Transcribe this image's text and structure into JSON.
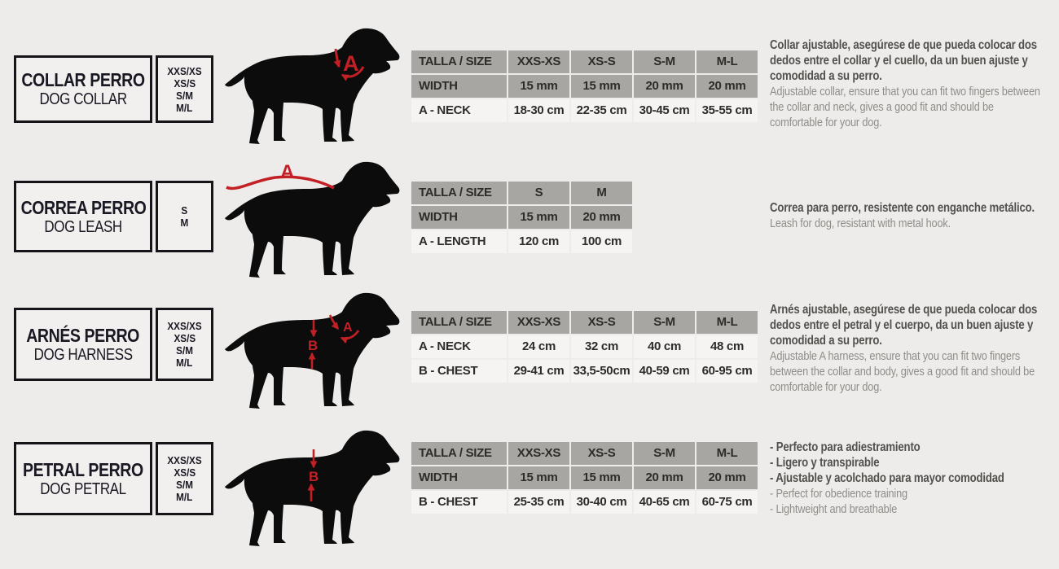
{
  "colors": {
    "background": "#edecea",
    "table_header_gray": "#a7a6a2",
    "table_row_light": "#f5f4f2",
    "ink": "#1a1822",
    "measure_red": "#c32026",
    "desc_es_gray": "#53514e",
    "desc_en_gray": "#908d89"
  },
  "products": [
    {
      "key": "collar",
      "title_es": "COLLAR PERRO",
      "title_en": "DOG COLLAR",
      "sizes": [
        "XXS/XS",
        "XS/S",
        "S/M",
        "M/L"
      ],
      "markers": {
        "a": "A"
      },
      "table": {
        "columns": [
          "TALLA / SIZE",
          "XXS-XS",
          "XS-S",
          "S-M",
          "M-L"
        ],
        "rows": [
          {
            "label": "WIDTH",
            "shade": "gray",
            "values": [
              "15 mm",
              "15 mm",
              "20 mm",
              "20 mm"
            ]
          },
          {
            "label": "A - NECK",
            "shade": "light",
            "values": [
              "18-30 cm",
              "22-35 cm",
              "30-45 cm",
              "35-55 cm"
            ]
          }
        ]
      },
      "desc_es_lines": [
        "Collar ajustable, asegúrese de que pueda colocar dos dedos entre el collar y el cuello, da un buen ajuste y comodidad a su perro."
      ],
      "desc_en_lines": [
        "Adjustable collar, ensure that you can fit two fingers between the collar and neck, gives a good fit and should be comfortable for your dog."
      ]
    },
    {
      "key": "leash",
      "title_es": "CORREA PERRO",
      "title_en": "DOG LEASH",
      "sizes": [
        "S",
        "M"
      ],
      "markers": {
        "a": "A"
      },
      "table": {
        "columns": [
          "TALLA / SIZE",
          "S",
          "M"
        ],
        "rows": [
          {
            "label": "WIDTH",
            "shade": "gray",
            "values": [
              "15 mm",
              "20 mm"
            ]
          },
          {
            "label": "A - LENGTH",
            "shade": "light",
            "values": [
              "120 cm",
              "100 cm"
            ]
          }
        ]
      },
      "desc_es_lines": [
        "Correa para perro, resistente con enganche metálico."
      ],
      "desc_en_lines": [
        "Leash for dog, resistant with metal hook."
      ]
    },
    {
      "key": "harness",
      "title_es": "ARNÉS PERRO",
      "title_en": "DOG HARNESS",
      "sizes": [
        "XXS/XS",
        "XS/S",
        "S/M",
        "M/L"
      ],
      "markers": {
        "a": "A",
        "b": "B"
      },
      "table": {
        "columns": [
          "TALLA / SIZE",
          "XXS-XS",
          "XS-S",
          "S-M",
          "M-L"
        ],
        "rows": [
          {
            "label": "A - NECK",
            "shade": "light",
            "values": [
              "24 cm",
              "32 cm",
              "40 cm",
              "48 cm"
            ]
          },
          {
            "label": "B - CHEST",
            "shade": "light",
            "values": [
              "29-41 cm",
              "33,5-50cm",
              "40-59 cm",
              "60-95 cm"
            ]
          }
        ]
      },
      "desc_es_lines": [
        "Arnés ajustable, asegúrese de que pueda colocar dos dedos entre el petral y el cuerpo, da un buen ajuste y comodidad a su perro."
      ],
      "desc_en_lines": [
        "Adjustable A harness, ensure that you can fit two fingers between the collar and body, gives a good fit and should be comfortable for your dog."
      ]
    },
    {
      "key": "petral",
      "title_es": "PETRAL PERRO",
      "title_en": "DOG PETRAL",
      "sizes": [
        "XXS/XS",
        "XS/S",
        "S/M",
        "M/L"
      ],
      "markers": {
        "b": "B"
      },
      "table": {
        "columns": [
          "TALLA / SIZE",
          "XXS-XS",
          "XS-S",
          "S-M",
          "M-L"
        ],
        "rows": [
          {
            "label": "WIDTH",
            "shade": "gray",
            "values": [
              "15 mm",
              "15 mm",
              "20 mm",
              "20 mm"
            ]
          },
          {
            "label": "B - CHEST",
            "shade": "light",
            "values": [
              "25-35 cm",
              "30-40 cm",
              "40-65 cm",
              "60-75 cm"
            ]
          }
        ]
      },
      "desc_es_lines": [
        "- Perfecto para adiestramiento",
        "- Ligero y transpirable",
        "- Ajustable y acolchado para mayor comodidad"
      ],
      "desc_en_lines": [
        "- Perfect for obedience training",
        "- Lightweight and breathable"
      ]
    }
  ]
}
